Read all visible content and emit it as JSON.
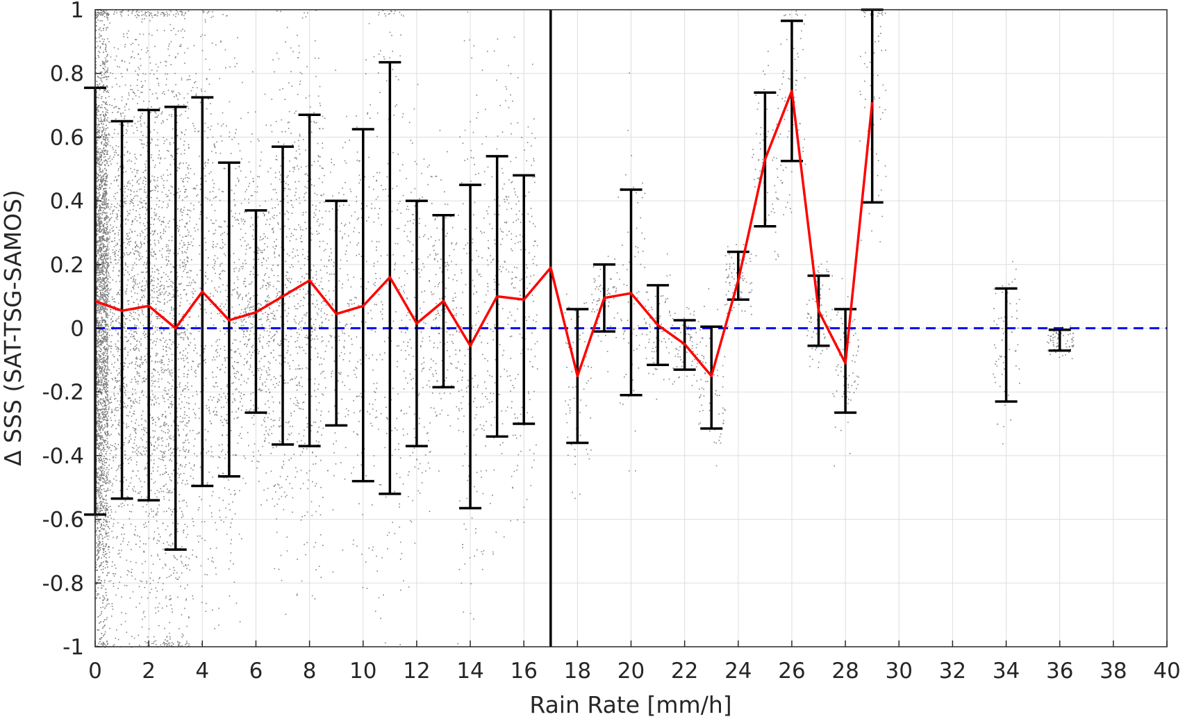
{
  "chart_data": {
    "type": "line",
    "title": "",
    "xlabel": "Rain Rate [mm/h]",
    "ylabel": "Δ SSS (SAT-TSG-SAMOS)",
    "xlim": [
      0,
      40
    ],
    "ylim": [
      -1,
      1
    ],
    "xticks": [
      0,
      2,
      4,
      6,
      8,
      10,
      12,
      14,
      16,
      18,
      20,
      22,
      24,
      26,
      28,
      30,
      32,
      34,
      36,
      38,
      40
    ],
    "yticks": [
      -1,
      -0.8,
      -0.6,
      -0.4,
      -0.2,
      0,
      0.2,
      0.4,
      0.6,
      0.8,
      1
    ],
    "ytick_labels": [
      "-1",
      "-0.8",
      "-0.6",
      "-0.4",
      "-0.2",
      "0",
      "0.2",
      "0.4",
      "0.6",
      "0.8",
      "1"
    ],
    "grid": true,
    "colors": {
      "mean_line": "#ff0000",
      "error_bars": "#000000",
      "zero_line": "#0000ff",
      "scatter": "#808080",
      "divider": "#000000"
    },
    "mean_series": {
      "x": [
        0,
        1,
        2,
        3,
        4,
        5,
        6,
        7,
        8,
        9,
        10,
        11,
        12,
        13,
        14,
        15,
        16,
        17,
        18,
        19,
        20,
        21,
        22,
        23,
        24,
        25,
        26,
        27,
        28,
        29
      ],
      "y": [
        0.085,
        0.055,
        0.07,
        0.0,
        0.115,
        0.025,
        0.05,
        0.1,
        0.15,
        0.045,
        0.07,
        0.16,
        0.015,
        0.085,
        -0.055,
        0.1,
        0.09,
        0.19,
        -0.15,
        0.095,
        0.11,
        0.01,
        -0.05,
        -0.15,
        0.15,
        0.53,
        0.745,
        0.055,
        -0.11,
        0.71
      ]
    },
    "error_bars": [
      {
        "x": 0,
        "low": -0.585,
        "high": 0.755
      },
      {
        "x": 1,
        "low": -0.535,
        "high": 0.65
      },
      {
        "x": 2,
        "low": -0.54,
        "high": 0.685
      },
      {
        "x": 3,
        "low": -0.695,
        "high": 0.695
      },
      {
        "x": 4,
        "low": -0.495,
        "high": 0.725
      },
      {
        "x": 5,
        "low": -0.465,
        "high": 0.52
      },
      {
        "x": 6,
        "low": -0.265,
        "high": 0.37
      },
      {
        "x": 7,
        "low": -0.365,
        "high": 0.57
      },
      {
        "x": 8,
        "low": -0.37,
        "high": 0.67
      },
      {
        "x": 9,
        "low": -0.305,
        "high": 0.4
      },
      {
        "x": 10,
        "low": -0.48,
        "high": 0.625
      },
      {
        "x": 11,
        "low": -0.52,
        "high": 0.835
      },
      {
        "x": 12,
        "low": -0.37,
        "high": 0.4
      },
      {
        "x": 13,
        "low": -0.185,
        "high": 0.355
      },
      {
        "x": 14,
        "low": -0.565,
        "high": 0.45
      },
      {
        "x": 15,
        "low": -0.34,
        "high": 0.54
      },
      {
        "x": 16,
        "low": -0.3,
        "high": 0.48
      },
      {
        "x": 18,
        "low": -0.36,
        "high": 0.06
      },
      {
        "x": 19,
        "low": -0.01,
        "high": 0.2
      },
      {
        "x": 20,
        "low": -0.21,
        "high": 0.435
      },
      {
        "x": 21,
        "low": -0.115,
        "high": 0.135
      },
      {
        "x": 22,
        "low": -0.13,
        "high": 0.025
      },
      {
        "x": 23,
        "low": -0.315,
        "high": 0.005
      },
      {
        "x": 24,
        "low": 0.09,
        "high": 0.24
      },
      {
        "x": 25,
        "low": 0.32,
        "high": 0.74
      },
      {
        "x": 26,
        "low": 0.525,
        "high": 0.965
      },
      {
        "x": 27,
        "low": -0.055,
        "high": 0.165
      },
      {
        "x": 28,
        "low": -0.265,
        "high": 0.06
      },
      {
        "x": 29,
        "low": 0.395,
        "high": 1.0
      },
      {
        "x": 34,
        "low": -0.23,
        "high": 0.125
      },
      {
        "x": 36,
        "low": -0.07,
        "high": -0.005
      }
    ],
    "reference_line": {
      "y": 0,
      "style": "dashed"
    },
    "vertical_line": {
      "x": 17
    }
  }
}
